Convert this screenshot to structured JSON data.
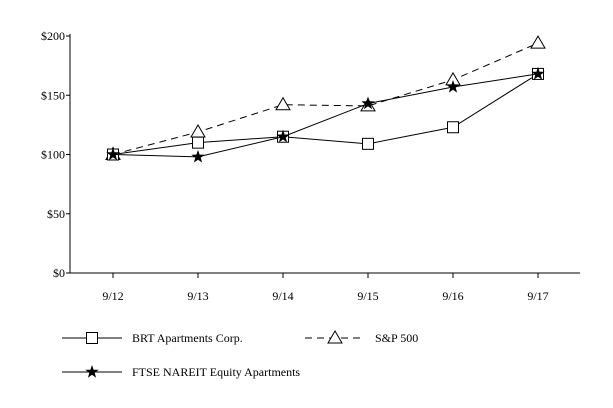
{
  "chart_data": {
    "type": "line",
    "title": "",
    "xlabel": "",
    "ylabel": "",
    "categories": [
      "9/12",
      "9/13",
      "9/14",
      "9/15",
      "9/16",
      "9/17"
    ],
    "ylim": [
      0,
      200
    ],
    "yticks": [
      "$0",
      "$50",
      "$100",
      "$150",
      "$200"
    ],
    "ytick_values": [
      0,
      50,
      100,
      150,
      200
    ],
    "grid": false,
    "legend_position": "bottom",
    "series": [
      {
        "name": "BRT Apartments Corp.",
        "values": [
          100,
          110,
          115,
          109,
          123,
          168
        ],
        "marker": "square",
        "dash": "solid",
        "color": "#000000"
      },
      {
        "name": "S&P 500",
        "values": [
          100,
          119,
          142,
          141,
          163,
          194
        ],
        "marker": "triangle",
        "dash": "dashed",
        "color": "#000000"
      },
      {
        "name": "FTSE NAREIT Equity Apartments",
        "values": [
          100,
          98,
          115,
          143,
          157,
          168
        ],
        "marker": "star",
        "dash": "solid",
        "color": "#000000"
      }
    ]
  }
}
